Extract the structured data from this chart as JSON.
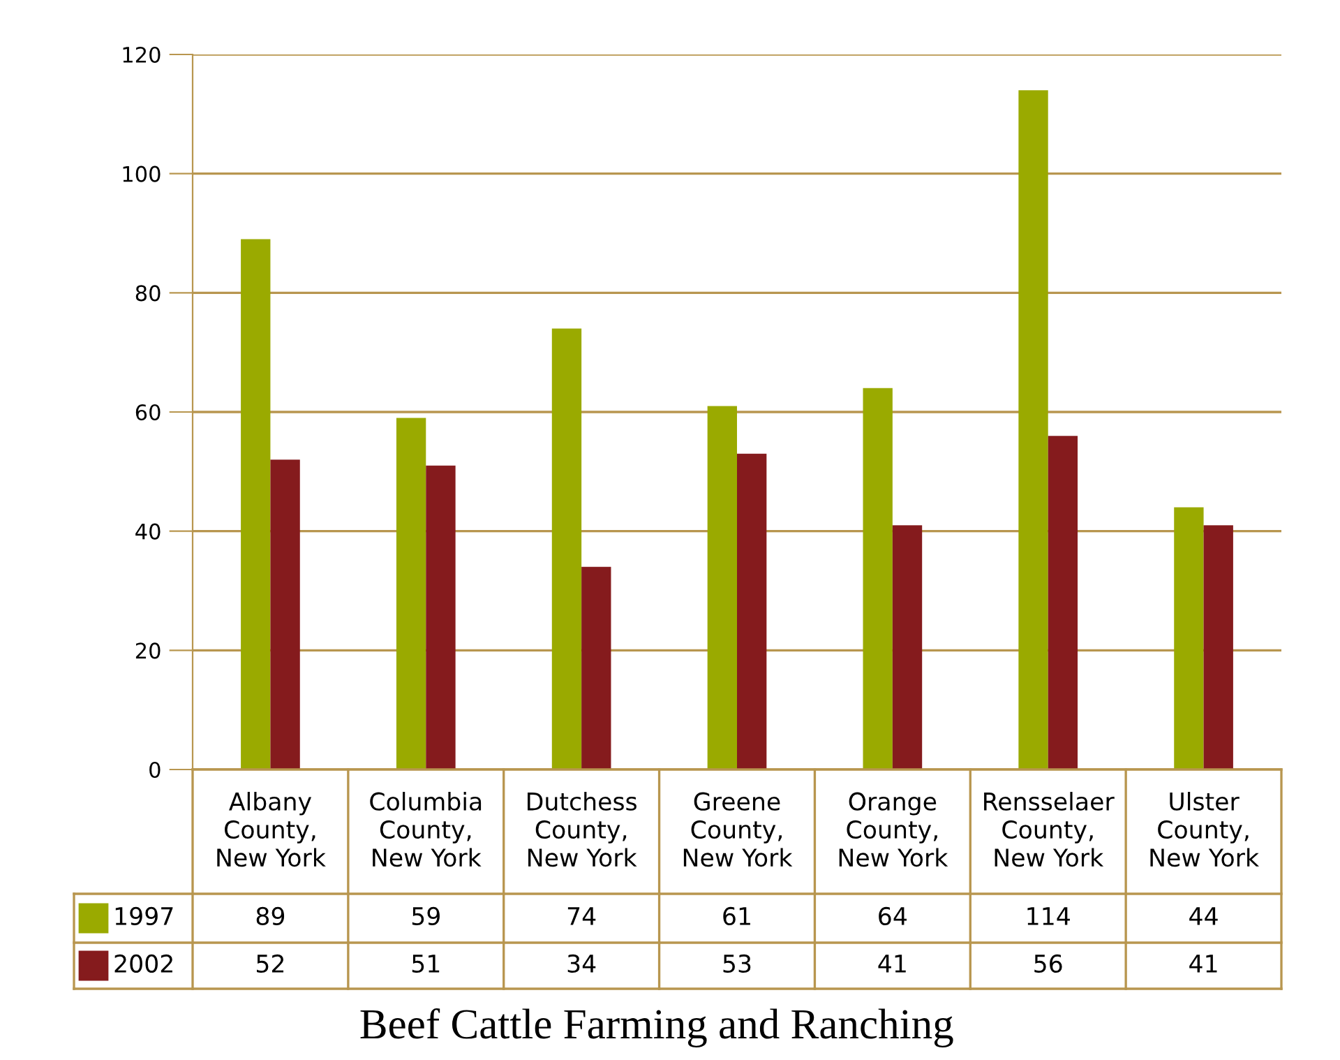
{
  "chart_data": {
    "type": "bar",
    "title": "Beef Cattle Farming and Ranching",
    "categories": [
      "Albany\nCounty,\nNew York",
      "Columbia\nCounty,\nNew York",
      "Dutchess\nCounty,\nNew York",
      "Greene\nCounty,\nNew York",
      "Orange\nCounty,\nNew York",
      "Rensselaer\nCounty,\nNew York",
      "Ulster\nCounty,\nNew York"
    ],
    "series": [
      {
        "name": "1997",
        "color": "#9aaa00",
        "values": [
          89,
          59,
          74,
          61,
          64,
          114,
          44
        ]
      },
      {
        "name": "2002",
        "color": "#851b1d",
        "values": [
          52,
          51,
          34,
          53,
          41,
          56,
          41
        ]
      }
    ],
    "ylim": [
      0,
      120
    ],
    "yticks": [
      0,
      20,
      40,
      60,
      80,
      100,
      120
    ],
    "grid": "y",
    "data_labels": true,
    "legend": "bottom"
  }
}
